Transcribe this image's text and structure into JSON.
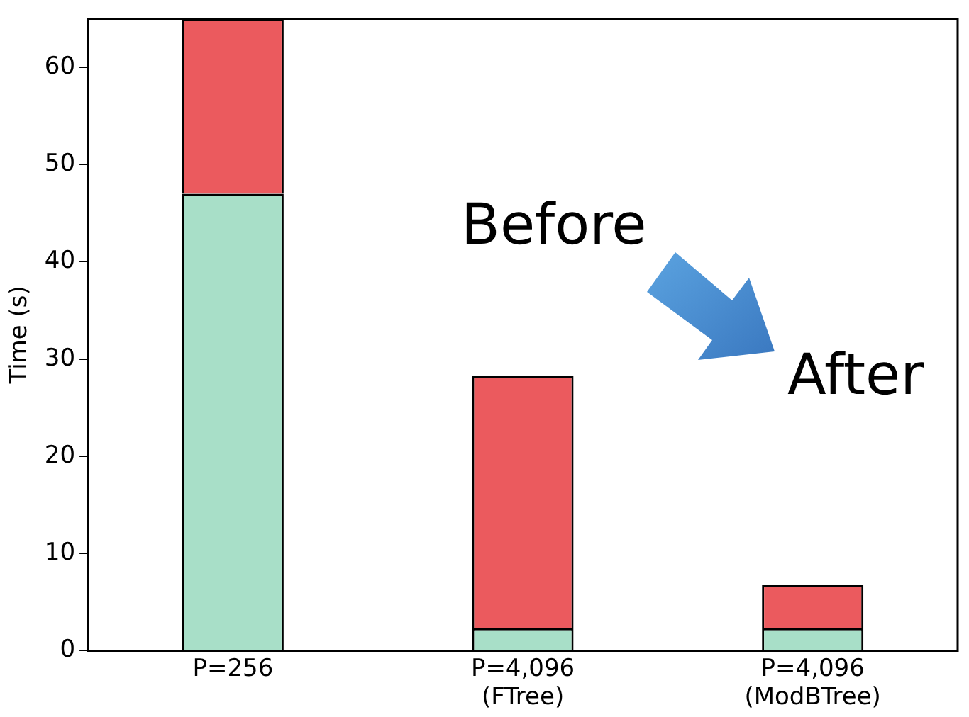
{
  "chart_data": {
    "type": "bar",
    "stacked": true,
    "ylabel": "Time (s)",
    "categories": [
      "P=256",
      "P=4,096\n(FTree)",
      "P=4,096\n(ModBTree)"
    ],
    "series": [
      {
        "color": "#a8dfc8",
        "values": [
          47,
          2.3,
          2.3
        ]
      },
      {
        "color": "#eb5a5e",
        "values": [
          18,
          26,
          4.5
        ]
      }
    ],
    "ylim": [
      0,
      65
    ],
    "yticks": [
      0,
      10,
      20,
      30,
      40,
      50,
      60
    ],
    "grid": false,
    "legend": false,
    "annotations": [
      "Before",
      "After"
    ]
  }
}
